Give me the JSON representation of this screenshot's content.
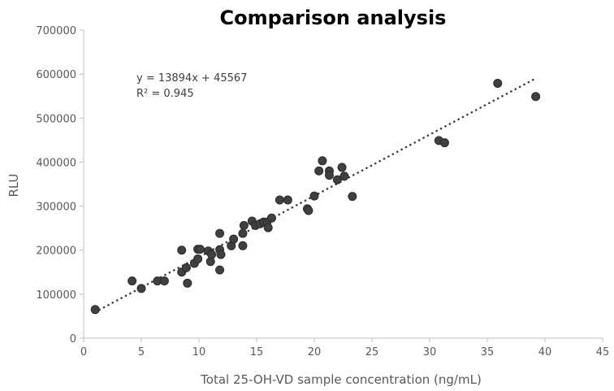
{
  "chart_data": {
    "type": "scatter",
    "title": "Comparison analysis",
    "xlabel": "Total 25-OH-VD sample concentration (ng/mL)",
    "ylabel": "RLU",
    "xlim": [
      0,
      45
    ],
    "ylim": [
      0,
      700000
    ],
    "xticks": [
      0,
      5,
      10,
      15,
      20,
      25,
      30,
      35,
      40,
      45
    ],
    "yticks": [
      0,
      100000,
      200000,
      300000,
      400000,
      500000,
      600000,
      700000
    ],
    "grid": false,
    "point_color": "#404040",
    "trendline": {
      "slope": 13894,
      "intercept": 45567,
      "x_range": [
        1,
        39
      ],
      "style": "dotted",
      "equation": "y = 13894x + 45567",
      "r2_label": "R² = 0.945"
    },
    "points": [
      [
        1.0,
        65000
      ],
      [
        4.2,
        130000
      ],
      [
        5.0,
        113000
      ],
      [
        6.4,
        130000
      ],
      [
        7.0,
        130000
      ],
      [
        8.5,
        200000
      ],
      [
        8.5,
        150000
      ],
      [
        8.9,
        160000
      ],
      [
        9.0,
        125000
      ],
      [
        9.6,
        170000
      ],
      [
        9.9,
        180000
      ],
      [
        9.9,
        202000
      ],
      [
        10.1,
        202000
      ],
      [
        10.8,
        198000
      ],
      [
        11.0,
        174000
      ],
      [
        11.1,
        190000
      ],
      [
        11.8,
        238000
      ],
      [
        11.8,
        201000
      ],
      [
        11.9,
        190000
      ],
      [
        11.8,
        155000
      ],
      [
        12.8,
        210000
      ],
      [
        13.0,
        225000
      ],
      [
        13.8,
        238000
      ],
      [
        13.9,
        256000
      ],
      [
        13.8,
        210000
      ],
      [
        14.6,
        266000
      ],
      [
        14.9,
        256000
      ],
      [
        15.3,
        260000
      ],
      [
        15.6,
        264000
      ],
      [
        15.9,
        264000
      ],
      [
        16.0,
        251000
      ],
      [
        16.3,
        273000
      ],
      [
        17.0,
        314000
      ],
      [
        17.7,
        314000
      ],
      [
        19.4,
        294000
      ],
      [
        19.5,
        290000
      ],
      [
        20.0,
        323000
      ],
      [
        20.4,
        380000
      ],
      [
        20.7,
        403000
      ],
      [
        21.3,
        380000
      ],
      [
        21.3,
        370000
      ],
      [
        22.0,
        360000
      ],
      [
        22.4,
        388000
      ],
      [
        22.6,
        368000
      ],
      [
        23.3,
        322000
      ],
      [
        30.8,
        449000
      ],
      [
        31.3,
        444000
      ],
      [
        35.9,
        579000
      ],
      [
        39.2,
        549000
      ]
    ]
  }
}
